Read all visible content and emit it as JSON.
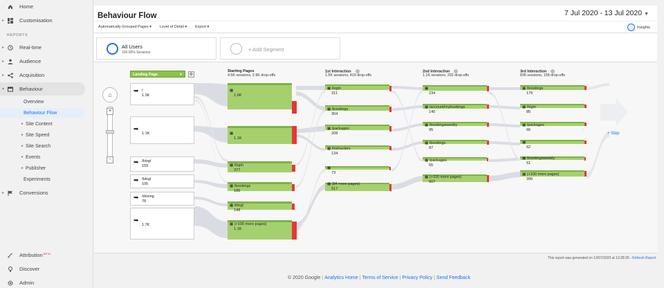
{
  "sidebar": {
    "home": "Home",
    "customisation": "Customisation",
    "reports_section": "REPORTS",
    "realtime": "Real-time",
    "audience": "Audience",
    "acquisition": "Acquisition",
    "behaviour": "Behaviour",
    "behaviour_sub": [
      "Overview",
      "Behaviour Flow",
      "Site Content",
      "Site Speed",
      "Site Search",
      "Events",
      "Publisher",
      "Experiments"
    ],
    "conversions": "Conversions",
    "attribution": "Attribution",
    "attribution_badge": "BETA",
    "discover": "Discover",
    "admin": "Admin"
  },
  "header": {
    "title": "Behaviour Flow",
    "date_range": "7 Jul 2020 - 13 Jul 2020",
    "toolbar": {
      "grouped": "Automatically Grouped Pages",
      "level": "Level of Detail",
      "export": "Export",
      "insights": "Insights"
    }
  },
  "segments": {
    "all_users": "All Users",
    "all_users_sub": "100.00% Sessions",
    "add_segment": "+ Add Segment"
  },
  "flow": {
    "dimension": "Landing Page",
    "columns": [
      {
        "title": "Starting Pages",
        "sub": "4.5K sessions, 2.9K drop-offs"
      },
      {
        "title": "1st Interaction",
        "sub": "1.5K sessions, 419 drop-offs"
      },
      {
        "title": "2nd Interaction",
        "sub": "1.1K sessions, 292 drop-offs"
      },
      {
        "title": "3rd Interaction",
        "sub": "836 sessions, 158 drop-offs"
      }
    ],
    "sources": [
      {
        "name": "/",
        "value": "1.3K"
      },
      {
        "name": "",
        "value": "1.1K"
      },
      {
        "name": "/blog/",
        "value": "159"
      },
      {
        "name": "/blog/",
        "value": "105"
      },
      {
        "name": "/driving",
        "value": "78"
      },
      {
        "name": "",
        "value": "1.7K"
      }
    ],
    "starting": [
      {
        "name": "",
        "value": "1.6K"
      },
      {
        "name": "",
        "value": "1.1K"
      },
      {
        "name": "/login",
        "value": "377"
      },
      {
        "name": "/bookings",
        "value": "186"
      },
      {
        "name": "/blog/",
        "value": "148"
      },
      {
        "name": "(>100 more pages)",
        "value": "1.1K"
      }
    ],
    "first": [
      {
        "name": "/login",
        "value": "311"
      },
      {
        "name": "/bookings",
        "value": "304"
      },
      {
        "name": "/packages",
        "value": "208"
      },
      {
        "name": "/instructors",
        "value": "134"
      },
      {
        "name": "",
        "value": "73"
      },
      {
        "name": "(84 more pages)",
        "value": "517"
      }
    ],
    "second": [
      {
        "name": "",
        "value": "234"
      },
      {
        "name": "/account/mybookings",
        "value": "140"
      },
      {
        "name": "/bookingsweekly",
        "value": "95"
      },
      {
        "name": "/bookings",
        "value": "87"
      },
      {
        "name": "/packages",
        "value": "65"
      },
      {
        "name": "(>100 more pages)",
        "value": "507"
      }
    ],
    "third": [
      {
        "name": "/bookings",
        "value": "176"
      },
      {
        "name": "/login",
        "value": "85"
      },
      {
        "name": "/packages",
        "value": "66"
      },
      {
        "name": "",
        "value": "62"
      },
      {
        "name": "/bookingsweekly",
        "value": "51"
      },
      {
        "name": "(>100 more pages)",
        "value": "396"
      }
    ],
    "add_step": "+ Step",
    "report_note": "This report was generated on 13/07/2020 at 13:28:25 -",
    "refresh": "Refresh Report"
  },
  "footer": {
    "copyright": "© 2020 Google",
    "links": [
      "Analytics Home",
      "Terms of Service",
      "Privacy Policy",
      "Send Feedback"
    ]
  },
  "colors": {
    "accent": "#1a73e8",
    "node_green": "#8bc34a",
    "dropoff_red": "#e53935"
  }
}
